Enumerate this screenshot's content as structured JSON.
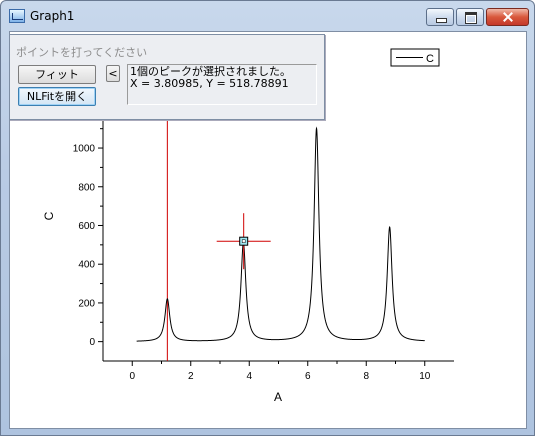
{
  "window": {
    "title": "Graph1",
    "icon": "graph-window-icon"
  },
  "panel": {
    "title": "ポイントを打ってください",
    "fit_label": "フィット",
    "nlfit_label": "NLFitを開く",
    "back_label": "<",
    "info_line1": "1個のピークが選択されました。",
    "info_line2": "X = 3.80985, Y = 518.78891"
  },
  "chart_data": {
    "type": "line",
    "xlabel": "A",
    "ylabel": "C",
    "xlim": [
      -1,
      11
    ],
    "ylim": [
      -100,
      1150
    ],
    "xticks": [
      0,
      2,
      4,
      6,
      8,
      10
    ],
    "yticks": [
      0,
      200,
      400,
      600,
      800,
      1000
    ],
    "legend": {
      "entries": [
        "C"
      ],
      "placement": "top-right"
    },
    "series": [
      {
        "name": "C",
        "color": "#000000",
        "peaks": [
          {
            "x": 1.2,
            "height": 220
          },
          {
            "x": 3.8,
            "height": 510
          },
          {
            "x": 6.3,
            "height": 1100
          },
          {
            "x": 8.8,
            "height": 590
          }
        ],
        "x_start": 0.15,
        "x_end": 10.0
      }
    ],
    "annotations": {
      "vertical_line_x": 1.2,
      "vertical_line_color": "#d00000",
      "marker": {
        "x": 3.80985,
        "y": 518.78891,
        "color": "#d00000"
      }
    }
  }
}
